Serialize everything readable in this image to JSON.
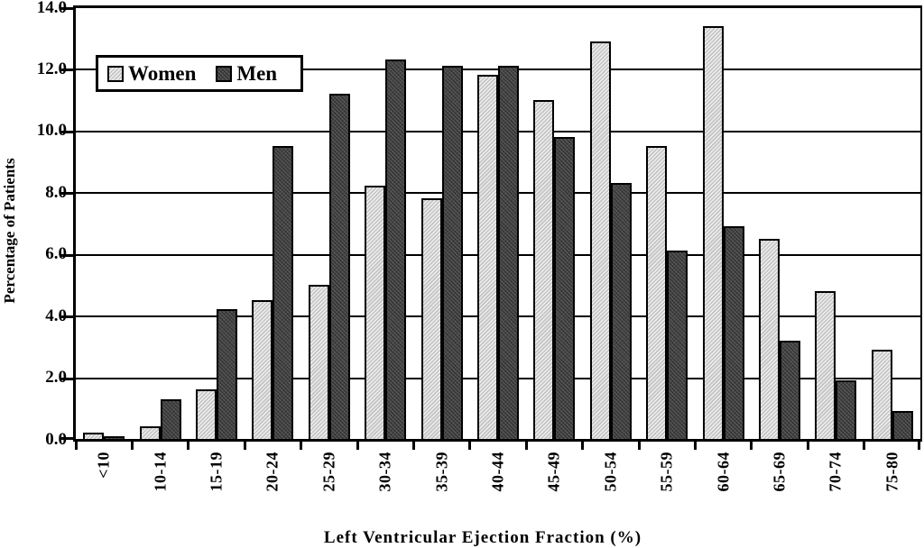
{
  "chart_data": {
    "type": "bar",
    "title": "",
    "xlabel": "Left Ventricular Ejection Fraction (%)",
    "ylabel": "Percentage of Patients",
    "categories": [
      "<10",
      "10-14",
      "15-19",
      "20-24",
      "25-29",
      "30-34",
      "35-39",
      "40-44",
      "45-49",
      "50-54",
      "55-59",
      "60-64",
      "65-69",
      "70-74",
      "75-80"
    ],
    "series": [
      {
        "name": "Women",
        "values": [
          0.2,
          0.4,
          1.6,
          4.5,
          5.0,
          8.2,
          7.8,
          11.8,
          11.0,
          12.9,
          9.5,
          13.4,
          6.5,
          4.8,
          2.9
        ],
        "fill": "#cdcdcd",
        "pattern": "diagonal-hatch"
      },
      {
        "name": "Men",
        "values": [
          0.1,
          1.3,
          4.2,
          9.5,
          11.2,
          12.3,
          12.1,
          12.1,
          9.8,
          8.3,
          6.1,
          6.9,
          3.2,
          1.9,
          0.9
        ],
        "fill": "#4a4a4a",
        "pattern": "dot-grid"
      }
    ],
    "ylim": [
      0,
      14
    ],
    "ytick_step": 2,
    "ytick_labels": [
      "0.0",
      "2.0",
      "4.0",
      "6.0",
      "8.0",
      "10.0",
      "12.0",
      "14.0"
    ],
    "grid": true,
    "legend_position": "top-left",
    "bar_outline_color": "#000000",
    "gridline_color": "#000000"
  }
}
